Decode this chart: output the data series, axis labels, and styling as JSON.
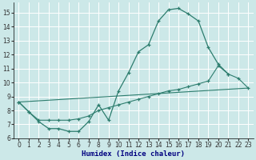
{
  "xlabel": "Humidex (Indice chaleur)",
  "background_color": "#cce8e8",
  "grid_color": "#ffffff",
  "line_color": "#2d7d6e",
  "xlim": [
    -0.5,
    23.5
  ],
  "ylim": [
    6,
    15.7
  ],
  "xticks": [
    0,
    1,
    2,
    3,
    4,
    5,
    6,
    7,
    8,
    9,
    10,
    11,
    12,
    13,
    14,
    15,
    16,
    17,
    18,
    19,
    20,
    21,
    22,
    23
  ],
  "yticks": [
    6,
    7,
    8,
    9,
    10,
    11,
    12,
    13,
    14,
    15
  ],
  "line1_x": [
    0,
    1,
    2,
    3,
    4,
    5,
    6,
    7,
    8,
    9,
    10,
    11,
    12,
    13,
    14,
    15,
    16,
    17,
    18,
    19,
    20,
    21
  ],
  "line1_y": [
    8.6,
    7.9,
    7.2,
    6.7,
    6.7,
    6.5,
    6.5,
    7.2,
    8.4,
    7.3,
    9.4,
    10.7,
    12.2,
    12.7,
    14.4,
    15.2,
    15.3,
    14.9,
    14.4,
    12.5,
    11.3,
    10.6
  ],
  "line2_x": [
    0,
    1,
    2,
    3,
    4,
    5,
    6,
    7,
    8,
    9,
    10,
    11,
    12,
    13,
    14,
    15,
    16,
    17,
    18,
    19,
    20,
    21,
    22,
    23
  ],
  "line2_y": [
    8.6,
    7.9,
    7.3,
    7.3,
    7.3,
    7.3,
    7.4,
    7.6,
    8.0,
    8.2,
    8.4,
    8.6,
    8.8,
    9.0,
    9.2,
    9.4,
    9.5,
    9.7,
    9.9,
    10.1,
    11.2,
    10.6,
    10.3,
    9.6
  ],
  "line3_x": [
    0,
    23
  ],
  "line3_y": [
    8.6,
    9.6
  ]
}
